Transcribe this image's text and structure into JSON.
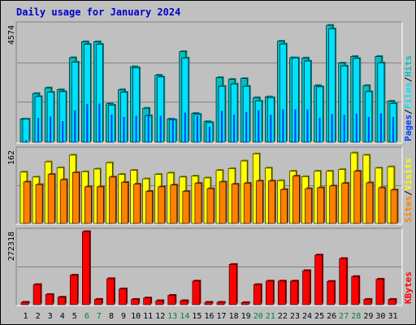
{
  "chart_data": {
    "type": "bar",
    "title": "Daily usage for January 2024",
    "categories": [
      "1",
      "2",
      "3",
      "4",
      "5",
      "6",
      "7",
      "8",
      "9",
      "10",
      "11",
      "12",
      "13",
      "14",
      "15",
      "16",
      "17",
      "18",
      "19",
      "20",
      "21",
      "22",
      "23",
      "24",
      "25",
      "26",
      "27",
      "28",
      "29",
      "30",
      "31"
    ],
    "weekend_days": [
      "6",
      "7",
      "13",
      "14",
      "20",
      "21",
      "27",
      "28"
    ],
    "colors": {
      "hits": "#00c0c0",
      "hits_edge": "#007f7f",
      "files": "#00e0ff",
      "pages": "#0040ff",
      "visits": "#ffff00",
      "sites": "#ff8000",
      "kbytes": "#ff0000",
      "weekday_label": "#000000",
      "weekend_label": "#00803f",
      "title": "#0000cc"
    },
    "panels": [
      {
        "name": "hits-files-pages",
        "ymax_label": "4574",
        "ymax": 4574,
        "legend": [
          "Pages",
          "Files",
          "Hits"
        ],
        "series": [
          {
            "name": "Hits",
            "values": [
              900,
              1890,
              2110,
              2040,
              3280,
              3900,
              3900,
              1490,
              2040,
              2930,
              1320,
              2600,
              900,
              3520,
              1120,
              800,
              2510,
              2440,
              2470,
              1730,
              1760,
              3920,
              3280,
              3270,
              2200,
              4540,
              3070,
              3330,
              2200,
              3330,
              1590
            ]
          },
          {
            "name": "Files",
            "values": [
              900,
              1770,
              1940,
              1960,
              3110,
              3800,
              3800,
              1440,
              1940,
              2890,
              1030,
              2530,
              870,
              3270,
              1080,
              760,
              2170,
              2260,
              2170,
              1600,
              1730,
              3810,
              3270,
              3150,
              2150,
              4400,
              2960,
              3250,
              1960,
              3080,
              1500
            ]
          },
          {
            "name": "Pages",
            "values": [
              80,
              950,
              1000,
              820,
              1240,
              1480,
              1500,
              1070,
              980,
              1030,
              1080,
              1030,
              930,
              1150,
              1030,
              600,
              1220,
              1070,
              1170,
              1240,
              1060,
              1270,
              1280,
              1270,
              950,
              1090,
              1060,
              1110,
              980,
              1120,
              980
            ]
          }
        ]
      },
      {
        "name": "visits-sites",
        "ymax_label": "162",
        "ymax": 162,
        "legend": [
          "Sites",
          "Visits"
        ],
        "series": [
          {
            "name": "Visits",
            "values": [
              115,
              104,
              138,
              125,
              153,
              116,
              122,
              136,
              110,
              119,
              100,
              110,
              113,
              104,
              106,
              102,
              119,
              123,
              140,
              156,
              124,
              96,
              117,
              105,
              117,
              117,
              121,
              158,
              153,
              124,
              127
            ]
          },
          {
            "name": "Sites",
            "values": [
              93,
              87,
              110,
              98,
              114,
              82,
              82,
              104,
              92,
              88,
              72,
              82,
              86,
              72,
              90,
              78,
              93,
              88,
              90,
              95,
              95,
              76,
              106,
              78,
              80,
              84,
              90,
              117,
              91,
              80,
              75
            ]
          }
        ]
      },
      {
        "name": "kbytes",
        "ymax_label": "272318",
        "ymax": 272318,
        "legend": [
          "KBytes"
        ],
        "series": [
          {
            "name": "KBytes",
            "values": [
              9000,
              75000,
              38000,
              28000,
              110000,
              272318,
              20000,
              97000,
              59000,
              20000,
              25000,
              15000,
              35000,
              15000,
              88000,
              9000,
              9000,
              150000,
              8000,
              75000,
              88000,
              88000,
              88000,
              127000,
              185000,
              87000,
              172000,
              105000,
              20000,
              95000,
              20000
            ]
          }
        ]
      }
    ]
  }
}
